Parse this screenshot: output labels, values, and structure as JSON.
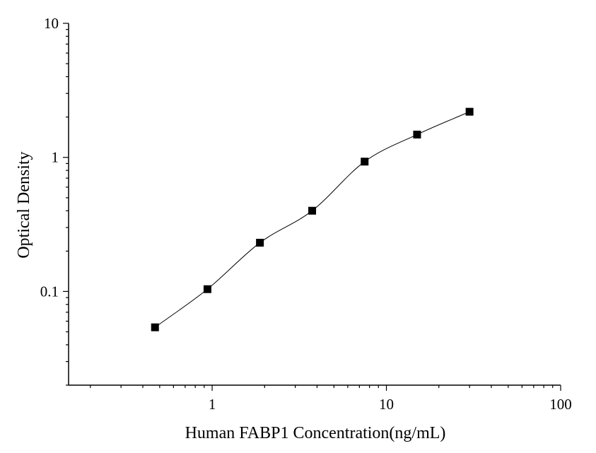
{
  "chart_data": {
    "type": "scatter",
    "title": "",
    "xlabel": "Human FABP1 Concentration(ng/mL)",
    "ylabel": "Optical Density",
    "xscale": "log",
    "yscale": "log",
    "xlim": [
      0.15,
      100
    ],
    "ylim": [
      0.02,
      10
    ],
    "x_ticks": [
      1,
      10,
      100
    ],
    "x_tick_labels": [
      "1",
      "10",
      "100"
    ],
    "y_ticks": [
      0.1,
      1,
      10
    ],
    "y_tick_labels": [
      "0.1",
      "1",
      "10"
    ],
    "grid": false,
    "legend": "none",
    "marker": "square",
    "marker_color": "#000000",
    "curve_color": "#000000",
    "fitted_curve": true,
    "series": [
      {
        "x": [
          0.47,
          0.94,
          1.88,
          3.75,
          7.5,
          15,
          30
        ],
        "y": [
          0.054,
          0.104,
          0.231,
          0.4,
          0.93,
          1.48,
          2.19
        ]
      }
    ]
  }
}
